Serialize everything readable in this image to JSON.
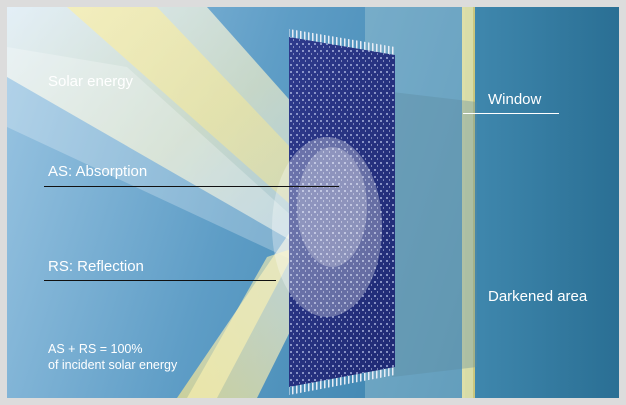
{
  "labels": {
    "solar_energy": "Solar energy",
    "absorption": "AS: Absorption",
    "reflection": "RS: Reflection",
    "sum_line1": "AS + RS = 100%",
    "sum_line2": "of incident solar energy",
    "window": "Window",
    "darkened_area": "Darkened area"
  }
}
